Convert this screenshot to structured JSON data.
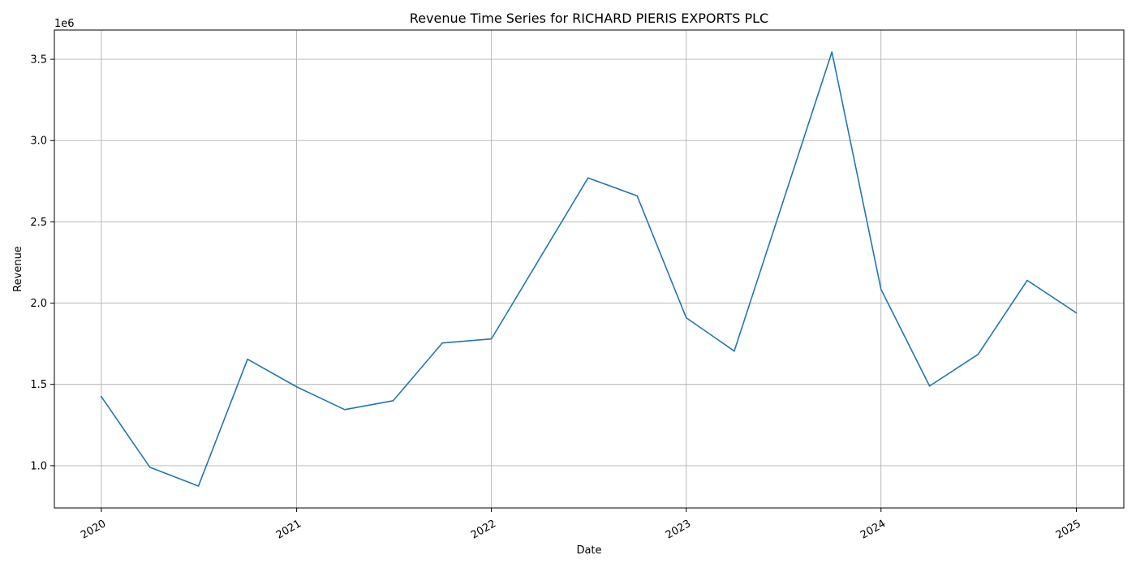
{
  "chart_data": {
    "type": "line",
    "title": "Revenue Time Series for RICHARD PIERIS EXPORTS PLC",
    "xlabel": "Date",
    "ylabel": "Revenue",
    "y_scale_label": "1e6",
    "x_axis_type": "date",
    "xlim": [
      "2019-10-04",
      "2025-03-30"
    ],
    "ylim": [
      740000,
      3680000
    ],
    "grid": true,
    "legend": "none",
    "series": [
      {
        "color": "#1f77b4",
        "points": [
          {
            "x": "2019-12-31",
            "y": 1425000
          },
          {
            "x": "2020-03-31",
            "y": 990000
          },
          {
            "x": "2020-06-30",
            "y": 875000
          },
          {
            "x": "2020-09-30",
            "y": 1655000
          },
          {
            "x": "2020-12-31",
            "y": 1485000
          },
          {
            "x": "2021-03-31",
            "y": 1345000
          },
          {
            "x": "2021-06-30",
            "y": 1400000
          },
          {
            "x": "2021-09-30",
            "y": 1755000
          },
          {
            "x": "2021-12-31",
            "y": 1780000
          },
          {
            "x": "2022-06-30",
            "y": 2770000
          },
          {
            "x": "2022-09-30",
            "y": 2660000
          },
          {
            "x": "2022-12-31",
            "y": 1910000
          },
          {
            "x": "2023-03-31",
            "y": 1705000
          },
          {
            "x": "2023-09-30",
            "y": 3545000
          },
          {
            "x": "2023-12-31",
            "y": 2085000
          },
          {
            "x": "2024-03-31",
            "y": 1490000
          },
          {
            "x": "2024-06-30",
            "y": 1685000
          },
          {
            "x": "2024-09-30",
            "y": 2140000
          },
          {
            "x": "2024-12-31",
            "y": 1940000
          }
        ]
      }
    ],
    "x_ticks": [
      {
        "x": "2019-12-31",
        "label": "2020"
      },
      {
        "x": "2020-12-31",
        "label": "2021"
      },
      {
        "x": "2021-12-31",
        "label": "2022"
      },
      {
        "x": "2022-12-31",
        "label": "2023"
      },
      {
        "x": "2023-12-31",
        "label": "2024"
      },
      {
        "x": "2024-12-31",
        "label": "2025"
      }
    ],
    "y_ticks": [
      {
        "value": 1000000,
        "label": "1.0"
      },
      {
        "value": 1500000,
        "label": "1.5"
      },
      {
        "value": 2000000,
        "label": "2.0"
      },
      {
        "value": 2500000,
        "label": "2.5"
      },
      {
        "value": 3000000,
        "label": "3.0"
      },
      {
        "value": 3500000,
        "label": "3.5"
      }
    ]
  }
}
